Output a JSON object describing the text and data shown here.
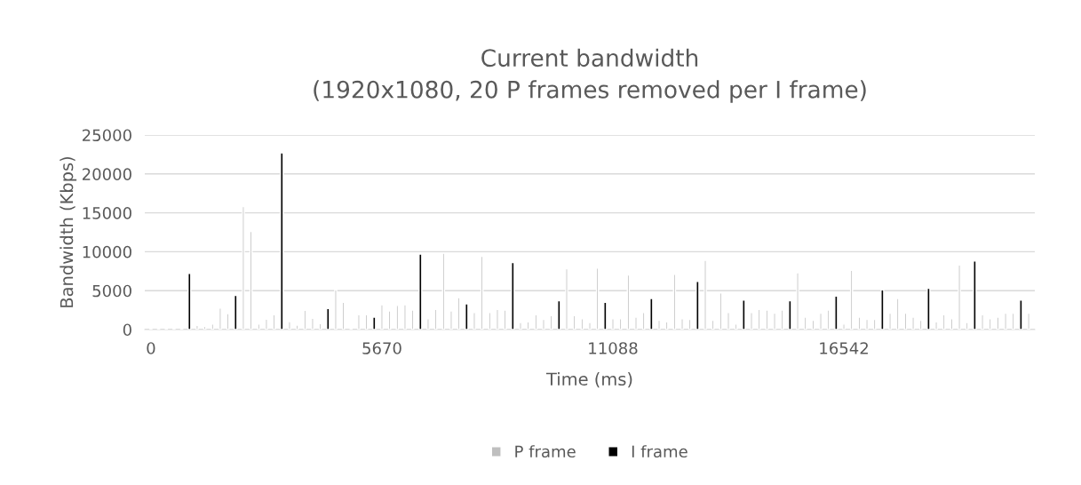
{
  "chart_data": {
    "type": "bar",
    "title": "Current bandwidth\n(1920x1080, 20 P frames removed per I frame)",
    "xlabel": "Time (ms)",
    "ylabel": "Bandwidth (Kbps)",
    "categories": [
      "0",
      null,
      null,
      null,
      null,
      null,
      null,
      null,
      null,
      null,
      null,
      null,
      null,
      null,
      null,
      null,
      null,
      null,
      null,
      null,
      null,
      null,
      null,
      null,
      null,
      null,
      null,
      null,
      null,
      null,
      "5670",
      null,
      null,
      null,
      null,
      null,
      null,
      null,
      null,
      null,
      null,
      null,
      null,
      null,
      null,
      null,
      null,
      null,
      null,
      null,
      null,
      null,
      null,
      null,
      null,
      null,
      null,
      null,
      null,
      null,
      "11088",
      null,
      null,
      null,
      null,
      null,
      null,
      null,
      null,
      null,
      null,
      null,
      null,
      null,
      null,
      null,
      null,
      null,
      null,
      null,
      null,
      null,
      null,
      null,
      null,
      null,
      null,
      null,
      null,
      null,
      "16542",
      null,
      null,
      null,
      null,
      null,
      null,
      null,
      null,
      null,
      null,
      null,
      null,
      null,
      null,
      null,
      null,
      null,
      null,
      null,
      null,
      null,
      null,
      null,
      null
    ],
    "series": [
      {
        "name": "P frame",
        "color": "#bfbfbf",
        "values": [
          150,
          150,
          150,
          150,
          150,
          null,
          530,
          380,
          720,
          2770,
          2050,
          null,
          15800,
          12600,
          720,
          1330,
          1900,
          null,
          1030,
          570,
          2470,
          1440,
          760,
          null,
          5100,
          3500,
          150,
          1900,
          1900,
          null,
          3200,
          2400,
          3100,
          3200,
          2500,
          null,
          1400,
          2600,
          9800,
          2400,
          4100,
          null,
          2200,
          9400,
          2200,
          2600,
          2500,
          null,
          900,
          1000,
          1900,
          1300,
          1800,
          null,
          7800,
          1800,
          1400,
          900,
          7900,
          null,
          1400,
          1400,
          7000,
          1600,
          2200,
          null,
          1200,
          1000,
          7100,
          1400,
          1300,
          null,
          8900,
          1200,
          4700,
          2200,
          700,
          null,
          2200,
          2600,
          2500,
          2100,
          2500,
          null,
          7300,
          1600,
          1200,
          2100,
          2500,
          null,
          700,
          7600,
          1600,
          1300,
          1300,
          null,
          2100,
          4000,
          2100,
          1600,
          1200,
          null,
          1000,
          1900,
          1400,
          8300,
          900,
          null,
          1900,
          1400,
          1600,
          2100,
          2100,
          null,
          2100
        ]
      },
      {
        "name": "I frame",
        "color": "#000000",
        "values": [
          null,
          null,
          null,
          null,
          null,
          7200,
          null,
          null,
          null,
          null,
          null,
          4400,
          null,
          null,
          null,
          null,
          null,
          22700,
          null,
          null,
          null,
          null,
          null,
          2700,
          null,
          null,
          null,
          null,
          null,
          1600,
          null,
          null,
          null,
          null,
          null,
          9700,
          null,
          null,
          null,
          null,
          null,
          3300,
          null,
          null,
          null,
          null,
          null,
          8600,
          null,
          null,
          null,
          null,
          null,
          3700,
          null,
          null,
          null,
          null,
          null,
          3500,
          null,
          null,
          null,
          null,
          null,
          4000,
          null,
          null,
          null,
          null,
          null,
          6200,
          null,
          null,
          null,
          null,
          null,
          3800,
          null,
          null,
          null,
          null,
          null,
          3700,
          null,
          null,
          null,
          null,
          null,
          4300,
          null,
          null,
          null,
          null,
          null,
          5100,
          null,
          null,
          null,
          null,
          null,
          5300,
          null,
          null,
          null,
          null,
          null,
          8800,
          null,
          null,
          null,
          null,
          null,
          3800,
          null
        ]
      }
    ],
    "ylim": [
      0,
      25000
    ],
    "yticks": [
      0,
      5000,
      10000,
      15000,
      20000,
      25000
    ],
    "grid": "y",
    "legend": "bottom"
  }
}
